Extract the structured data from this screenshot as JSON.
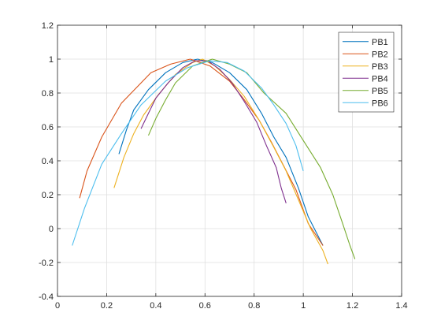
{
  "chart_data": {
    "type": "line",
    "title": "",
    "xlabel": "",
    "ylabel": "",
    "xlim": [
      0,
      1.4
    ],
    "ylim": [
      -0.4,
      1.2
    ],
    "x_ticks": [
      0,
      0.2,
      0.4,
      0.6,
      0.8,
      1,
      1.2,
      1.4
    ],
    "y_ticks": [
      -0.4,
      -0.2,
      0,
      0.2,
      0.4,
      0.6,
      0.8,
      1,
      1.2
    ],
    "x_tick_labels": [
      "0",
      "0.2",
      "0.4",
      "0.6",
      "0.8",
      "1",
      "1.2",
      "1.4"
    ],
    "y_tick_labels": [
      "-0.4",
      "-0.2",
      "0",
      "0.2",
      "0.4",
      "0.6",
      "0.8",
      "1",
      "1.2"
    ],
    "grid": true,
    "legend_position": "top-right",
    "series": [
      {
        "name": "PB1",
        "color": "#0072BD",
        "points": [
          [
            0.25,
            0.44
          ],
          [
            0.28,
            0.58
          ],
          [
            0.31,
            0.7
          ],
          [
            0.37,
            0.82
          ],
          [
            0.44,
            0.92
          ],
          [
            0.51,
            0.98
          ],
          [
            0.57,
            1.0
          ],
          [
            0.63,
            0.98
          ],
          [
            0.7,
            0.92
          ],
          [
            0.77,
            0.82
          ],
          [
            0.83,
            0.68
          ],
          [
            0.88,
            0.54
          ],
          [
            0.93,
            0.42
          ],
          [
            0.98,
            0.24
          ],
          [
            1.02,
            0.07
          ],
          [
            1.08,
            -0.1
          ]
        ]
      },
      {
        "name": "PB2",
        "color": "#D95319",
        "points": [
          [
            0.09,
            0.18
          ],
          [
            0.12,
            0.34
          ],
          [
            0.18,
            0.54
          ],
          [
            0.26,
            0.74
          ],
          [
            0.38,
            0.92
          ],
          [
            0.46,
            0.97
          ],
          [
            0.54,
            1.0
          ],
          [
            0.62,
            0.96
          ],
          [
            0.7,
            0.87
          ],
          [
            0.76,
            0.76
          ],
          [
            0.82,
            0.64
          ],
          [
            0.87,
            0.51
          ],
          [
            0.92,
            0.37
          ],
          [
            0.97,
            0.23
          ],
          [
            1.02,
            0.03
          ],
          [
            1.08,
            -0.1
          ]
        ]
      },
      {
        "name": "PB3",
        "color": "#EDB120",
        "points": [
          [
            0.23,
            0.24
          ],
          [
            0.27,
            0.42
          ],
          [
            0.31,
            0.56
          ],
          [
            0.35,
            0.67
          ],
          [
            0.41,
            0.79
          ],
          [
            0.48,
            0.91
          ],
          [
            0.55,
            0.98
          ],
          [
            0.59,
            1.0
          ],
          [
            0.64,
            0.96
          ],
          [
            0.7,
            0.88
          ],
          [
            0.76,
            0.78
          ],
          [
            0.82,
            0.64
          ],
          [
            0.88,
            0.48
          ],
          [
            0.93,
            0.34
          ],
          [
            0.98,
            0.17
          ],
          [
            1.03,
            0.0
          ],
          [
            1.08,
            -0.13
          ],
          [
            1.1,
            -0.21
          ]
        ]
      },
      {
        "name": "PB4",
        "color": "#7E2F8E",
        "points": [
          [
            0.34,
            0.59
          ],
          [
            0.37,
            0.68
          ],
          [
            0.4,
            0.77
          ],
          [
            0.45,
            0.86
          ],
          [
            0.51,
            0.95
          ],
          [
            0.56,
            0.99
          ],
          [
            0.61,
            0.99
          ],
          [
            0.66,
            0.94
          ],
          [
            0.71,
            0.86
          ],
          [
            0.76,
            0.75
          ],
          [
            0.81,
            0.63
          ],
          [
            0.85,
            0.49
          ],
          [
            0.89,
            0.36
          ],
          [
            0.91,
            0.24
          ],
          [
            0.93,
            0.15
          ]
        ]
      },
      {
        "name": "PB5",
        "color": "#77AC30",
        "points": [
          [
            0.37,
            0.55
          ],
          [
            0.4,
            0.65
          ],
          [
            0.44,
            0.76
          ],
          [
            0.48,
            0.86
          ],
          [
            0.55,
            0.96
          ],
          [
            0.63,
            1.0
          ],
          [
            0.7,
            0.97
          ],
          [
            0.77,
            0.92
          ],
          [
            0.84,
            0.8
          ],
          [
            0.93,
            0.68
          ],
          [
            1.0,
            0.52
          ],
          [
            1.07,
            0.36
          ],
          [
            1.12,
            0.2
          ],
          [
            1.16,
            0.03
          ],
          [
            1.19,
            -0.1
          ],
          [
            1.21,
            -0.18
          ]
        ]
      },
      {
        "name": "PB6",
        "color": "#4DBEEE",
        "points": [
          [
            0.06,
            -0.1
          ],
          [
            0.11,
            0.12
          ],
          [
            0.18,
            0.38
          ],
          [
            0.26,
            0.56
          ],
          [
            0.34,
            0.73
          ],
          [
            0.44,
            0.87
          ],
          [
            0.53,
            0.95
          ],
          [
            0.62,
            0.99
          ],
          [
            0.69,
            0.98
          ],
          [
            0.76,
            0.93
          ],
          [
            0.83,
            0.83
          ],
          [
            0.88,
            0.73
          ],
          [
            0.93,
            0.62
          ],
          [
            0.97,
            0.49
          ],
          [
            1.0,
            0.34
          ]
        ]
      }
    ]
  }
}
